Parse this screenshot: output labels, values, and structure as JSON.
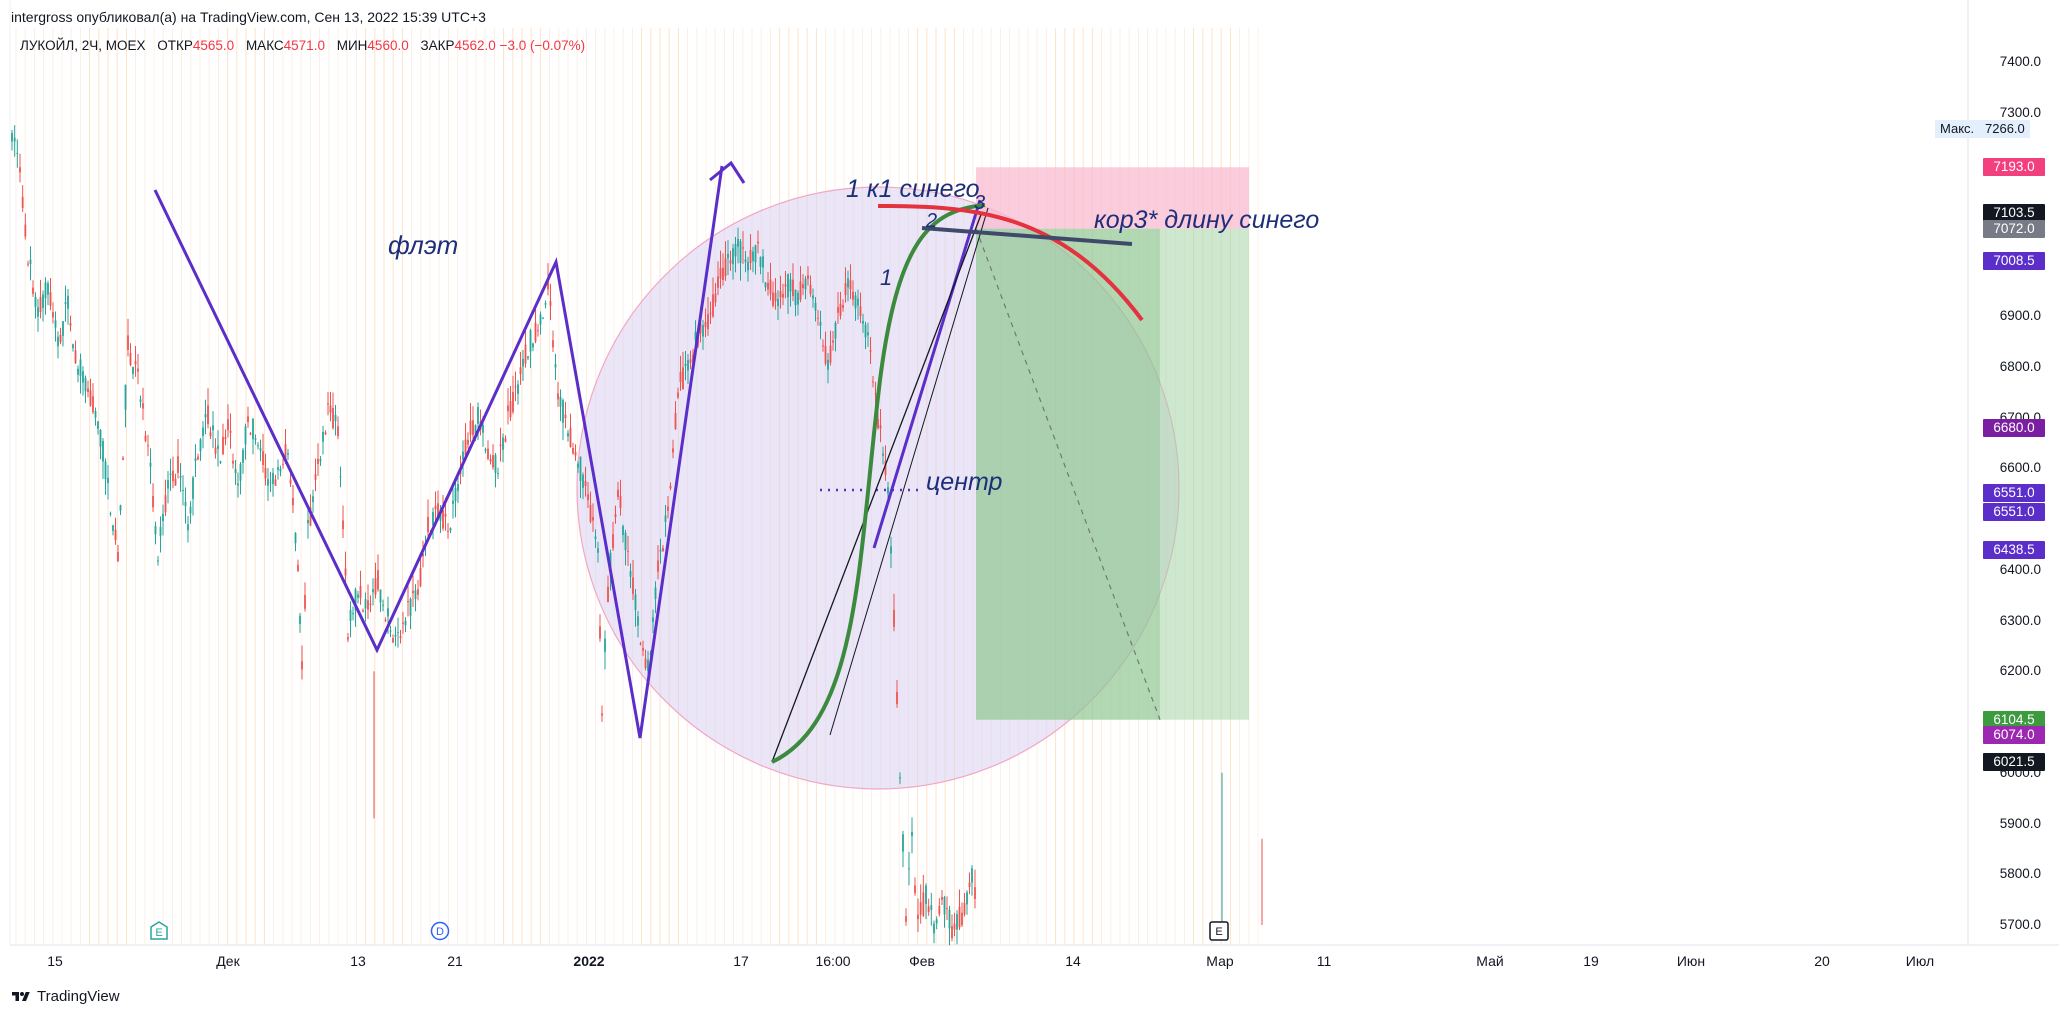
{
  "header": {
    "publish_line": "intergross опубликовал(а) на TradingView.com, Сен 13, 2022 15:39 UTC+3"
  },
  "legend": {
    "symbol": "ЛУКОЙЛ, 2Ч, MOEX",
    "open_label": "ОТКР",
    "open_value": "4565.0",
    "high_label": "МАКС",
    "high_value": "4571.0",
    "low_label": "МИН",
    "low_value": "4560.0",
    "close_label": "ЗАКР",
    "close_value": "4562.0 −3.0 (−0.07%)"
  },
  "annotations": {
    "flat": "флэт",
    "k1": "1 к1 синего",
    "kor3": "кор3* длину синего",
    "center": "центр",
    "wave1": "1",
    "wave2": "2",
    "wave3": "3"
  },
  "price_axis": {
    "ticks": [
      "7400.0",
      "7300.0",
      "6900.0",
      "6800.0",
      "6700.0",
      "6600.0",
      "6400.0",
      "6300.0",
      "6200.0",
      "6000.0",
      "5900.0",
      "5800.0",
      "5700.0"
    ],
    "max_label": "Макс.",
    "max_value": "7266.0",
    "tags": [
      {
        "value": "7193.0",
        "color": "#f23f7d"
      },
      {
        "value": "7103.5",
        "color": "#131722"
      },
      {
        "value": "7072.0",
        "color": "#787b86"
      },
      {
        "value": "7008.5",
        "color": "#5b2ec9"
      },
      {
        "value": "6680.0",
        "color": "#7b1fa2"
      },
      {
        "value": "6551.0",
        "color": "#5b2ec9"
      },
      {
        "value": "6551.0",
        "color": "#5b2ec9"
      },
      {
        "value": "6438.5",
        "color": "#5b2ec9"
      },
      {
        "value": "6104.5",
        "color": "#3d9b3f"
      },
      {
        "value": "6074.0",
        "color": "#9c27b0"
      },
      {
        "value": "6021.5",
        "color": "#131722"
      }
    ]
  },
  "time_axis": {
    "labels": [
      {
        "text": "15",
        "bold": false
      },
      {
        "text": "Дек",
        "bold": false
      },
      {
        "text": "13",
        "bold": false
      },
      {
        "text": "21",
        "bold": false
      },
      {
        "text": "2022",
        "bold": true
      },
      {
        "text": "17",
        "bold": false
      },
      {
        "text": "16:00",
        "bold": false
      },
      {
        "text": "Фев",
        "bold": false
      },
      {
        "text": "14",
        "bold": false
      },
      {
        "text": "Мар",
        "bold": false
      },
      {
        "text": "11",
        "bold": false
      },
      {
        "text": "Май",
        "bold": false
      },
      {
        "text": "19",
        "bold": false
      },
      {
        "text": "Июн",
        "bold": false
      },
      {
        "text": "20",
        "bold": false
      },
      {
        "text": "Июл",
        "bold": false
      }
    ]
  },
  "events": [
    "E",
    "D",
    "E"
  ],
  "footer": {
    "brand": "TradingView"
  },
  "colors": {
    "up": "#26a69a",
    "down": "#ef5350",
    "pattern": "#5b2ec9",
    "green_curve": "#3b8a3e",
    "red_curve": "#e5323f",
    "circle_fill": "#d8d0f0",
    "profit_zone": "#a5d6a7",
    "stop_zone": "#f8bbd0"
  },
  "chart_data": {
    "type": "candlestick",
    "title": "ЛУКОЙЛ, 2Ч, MOEX",
    "ylim": [
      5650,
      7500
    ],
    "grid": "vertical-only",
    "path_points": [
      [
        0,
        7260
      ],
      [
        8,
        7180
      ],
      [
        16,
        7020
      ],
      [
        26,
        6900
      ],
      [
        36,
        6960
      ],
      [
        46,
        6850
      ],
      [
        56,
        6920
      ],
      [
        66,
        6800
      ],
      [
        76,
        6760
      ],
      [
        86,
        6700
      ],
      [
        96,
        6560
      ],
      [
        106,
        6440
      ],
      [
        116,
        6840
      ],
      [
        126,
        6780
      ],
      [
        136,
        6640
      ],
      [
        146,
        6430
      ],
      [
        156,
        6560
      ],
      [
        166,
        6600
      ],
      [
        176,
        6480
      ],
      [
        186,
        6640
      ],
      [
        196,
        6700
      ],
      [
        206,
        6620
      ],
      [
        216,
        6680
      ],
      [
        226,
        6560
      ],
      [
        236,
        6700
      ],
      [
        246,
        6660
      ],
      [
        256,
        6560
      ],
      [
        266,
        6600
      ],
      [
        276,
        6640
      ],
      [
        286,
        6420
      ],
      [
        290,
        6200
      ],
      [
        296,
        6480
      ],
      [
        306,
        6600
      ],
      [
        316,
        6720
      ],
      [
        326,
        6680
      ],
      [
        336,
        6280
      ],
      [
        346,
        6360
      ],
      [
        356,
        6320
      ],
      [
        366,
        6380
      ],
      [
        376,
        6300
      ],
      [
        386,
        6260
      ],
      [
        396,
        6320
      ],
      [
        406,
        6360
      ],
      [
        416,
        6480
      ],
      [
        426,
        6520
      ],
      [
        436,
        6480
      ],
      [
        446,
        6560
      ],
      [
        456,
        6660
      ],
      [
        466,
        6700
      ],
      [
        476,
        6640
      ],
      [
        486,
        6600
      ],
      [
        496,
        6700
      ],
      [
        506,
        6760
      ],
      [
        516,
        6840
      ],
      [
        526,
        6880
      ],
      [
        536,
        6960
      ],
      [
        546,
        6740
      ],
      [
        556,
        6680
      ],
      [
        566,
        6620
      ],
      [
        576,
        6540
      ],
      [
        586,
        6440
      ],
      [
        590,
        6120
      ],
      [
        596,
        6360
      ],
      [
        606,
        6560
      ],
      [
        616,
        6420
      ],
      [
        626,
        6300
      ],
      [
        636,
        6200
      ],
      [
        646,
        6400
      ],
      [
        656,
        6520
      ],
      [
        666,
        6760
      ],
      [
        676,
        6800
      ],
      [
        686,
        6860
      ],
      [
        696,
        6880
      ],
      [
        706,
        6960
      ],
      [
        716,
        7000
      ],
      [
        726,
        7030
      ],
      [
        736,
        7000
      ],
      [
        746,
        7040
      ],
      [
        756,
        6960
      ],
      [
        766,
        6920
      ],
      [
        776,
        6960
      ],
      [
        786,
        6940
      ],
      [
        796,
        6980
      ],
      [
        806,
        6900
      ],
      [
        816,
        6800
      ],
      [
        826,
        6900
      ],
      [
        836,
        6960
      ],
      [
        846,
        6920
      ],
      [
        856,
        6860
      ],
      [
        866,
        6700
      ],
      [
        876,
        6560
      ],
      [
        882,
        6300
      ],
      [
        888,
        6000
      ],
      [
        894,
        5720
      ],
      [
        900,
        5860
      ],
      [
        906,
        5700
      ],
      [
        914,
        5760
      ],
      [
        922,
        5700
      ],
      [
        930,
        5760
      ],
      [
        940,
        5690
      ],
      [
        950,
        5720
      ],
      [
        960,
        5800
      ],
      [
        966,
        5700
      ]
    ]
  }
}
